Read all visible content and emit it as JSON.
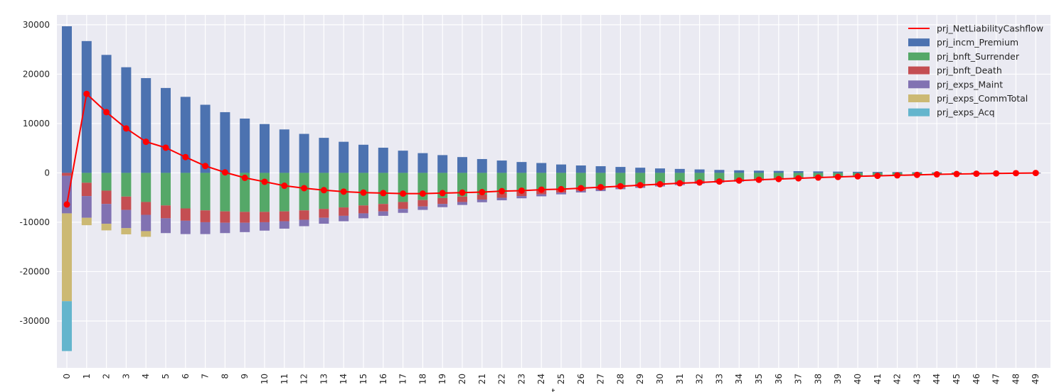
{
  "chart_data": {
    "type": "bar",
    "stacked": true,
    "background": "#EAEAF2",
    "grid": true,
    "legend_position": "top-right",
    "xlabel": "t",
    "ylabel": "",
    "ylim": [
      -39500,
      32000
    ],
    "yticks": [
      -30000,
      -20000,
      -10000,
      0,
      10000,
      20000,
      30000
    ],
    "categories": [
      "0",
      "1",
      "2",
      "3",
      "4",
      "5",
      "6",
      "7",
      "8",
      "9",
      "10",
      "11",
      "12",
      "13",
      "14",
      "15",
      "16",
      "17",
      "18",
      "19",
      "20",
      "21",
      "22",
      "23",
      "24",
      "25",
      "26",
      "27",
      "28",
      "29",
      "30",
      "31",
      "32",
      "33",
      "34",
      "35",
      "36",
      "37",
      "38",
      "39",
      "40",
      "41",
      "42",
      "43",
      "44",
      "45",
      "46",
      "47",
      "48",
      "49"
    ],
    "line_series": {
      "name": "prj_NetLiabilityCashflow",
      "color": "#FF0000",
      "values": [
        -6400,
        16000,
        12300,
        9000,
        6300,
        5100,
        3200,
        1400,
        100,
        -1000,
        -1800,
        -2600,
        -3100,
        -3500,
        -3800,
        -4000,
        -4100,
        -4200,
        -4200,
        -4100,
        -4000,
        -3900,
        -3700,
        -3600,
        -3400,
        -3300,
        -3100,
        -2900,
        -2700,
        -2500,
        -2300,
        -2100,
        -1950,
        -1750,
        -1550,
        -1400,
        -1250,
        -1100,
        -950,
        -820,
        -700,
        -600,
        -500,
        -400,
        -300,
        -230,
        -170,
        -110,
        -60,
        -20
      ]
    },
    "series": [
      {
        "name": "prj_incm_Premium",
        "color": "#4C72B0",
        "values": [
          29700,
          26700,
          23900,
          21400,
          19200,
          17200,
          15400,
          13800,
          12300,
          11000,
          9900,
          8800,
          7900,
          7100,
          6300,
          5700,
          5100,
          4500,
          4000,
          3600,
          3200,
          2800,
          2500,
          2200,
          2000,
          1700,
          1500,
          1350,
          1200,
          1050,
          900,
          800,
          700,
          600,
          520,
          450,
          400,
          350,
          300,
          260,
          220,
          190,
          160,
          130,
          110,
          90,
          70,
          55,
          40,
          30
        ]
      },
      {
        "name": "prj_bnft_Surrender",
        "color": "#55A868",
        "values": [
          0,
          -2000,
          -3600,
          -4800,
          -5900,
          -6600,
          -7200,
          -7600,
          -7800,
          -7900,
          -7900,
          -7800,
          -7600,
          -7300,
          -7000,
          -6600,
          -6300,
          -5900,
          -5500,
          -5100,
          -4800,
          -4400,
          -4100,
          -3800,
          -3500,
          -3200,
          -2900,
          -2700,
          -2400,
          -2200,
          -2000,
          -1800,
          -1600,
          -1450,
          -1300,
          -1150,
          -1000,
          -880,
          -760,
          -650,
          -550,
          -460,
          -380,
          -300,
          -240,
          -180,
          -130,
          -90,
          -60,
          -30
        ]
      },
      {
        "name": "prj_bnft_Death",
        "color": "#C44E52",
        "values": [
          -600,
          -2700,
          -2700,
          -2700,
          -2600,
          -2600,
          -2500,
          -2400,
          -2300,
          -2200,
          -2100,
          -2000,
          -1900,
          -1800,
          -1700,
          -1600,
          -1500,
          -1400,
          -1300,
          -1200,
          -1100,
          -1000,
          -950,
          -900,
          -850,
          -800,
          -750,
          -700,
          -650,
          -600,
          -550,
          -500,
          -450,
          -400,
          -360,
          -320,
          -280,
          -250,
          -220,
          -190,
          -160,
          -140,
          -120,
          -100,
          -80,
          -60,
          -50,
          -40,
          -30,
          -20
        ]
      },
      {
        "name": "prj_exps_Maint",
        "color": "#8172B2",
        "values": [
          -7600,
          -4400,
          -4000,
          -3700,
          -3300,
          -3000,
          -2700,
          -2400,
          -2100,
          -1900,
          -1700,
          -1500,
          -1300,
          -1200,
          -1100,
          -1000,
          -900,
          -800,
          -700,
          -650,
          -600,
          -550,
          -500,
          -450,
          -400,
          -350,
          -320,
          -290,
          -260,
          -230,
          -200,
          -180,
          -160,
          -140,
          -120,
          -100,
          -90,
          -80,
          -70,
          -60,
          -50,
          -40,
          -35,
          -30,
          -25,
          -20,
          -15,
          -10,
          -8,
          -5
        ]
      },
      {
        "name": "prj_exps_CommTotal",
        "color": "#CCB974",
        "values": [
          -17800,
          -1500,
          -1350,
          -1250,
          -1150,
          0,
          0,
          0,
          0,
          0,
          0,
          0,
          0,
          0,
          0,
          0,
          0,
          0,
          0,
          0,
          0,
          0,
          0,
          0,
          0,
          0,
          0,
          0,
          0,
          0,
          0,
          0,
          0,
          0,
          0,
          0,
          0,
          0,
          0,
          0,
          0,
          0,
          0,
          0,
          0,
          0,
          0,
          0,
          0,
          0
        ]
      },
      {
        "name": "prj_exps_Acq",
        "color": "#64B5CD",
        "values": [
          -10100,
          0,
          0,
          0,
          0,
          0,
          0,
          0,
          0,
          0,
          0,
          0,
          0,
          0,
          0,
          0,
          0,
          0,
          0,
          0,
          0,
          0,
          0,
          0,
          0,
          0,
          0,
          0,
          0,
          0,
          0,
          0,
          0,
          0,
          0,
          0,
          0,
          0,
          0,
          0,
          0,
          0,
          0,
          0,
          0,
          0,
          0,
          0,
          0,
          0
        ]
      }
    ]
  }
}
